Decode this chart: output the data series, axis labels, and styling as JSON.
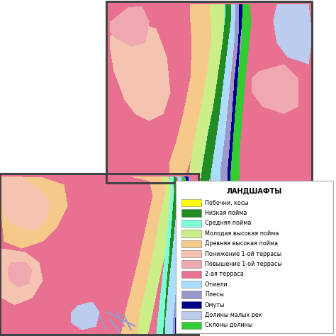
{
  "legend_title": "ЛАНДШАФТЫ",
  "legend_items": [
    {
      "label": "Побочни, косы",
      "color": "#FFFF00"
    },
    {
      "label": "Низкая пойма",
      "color": "#228B22"
    },
    {
      "label": "Средняя пойма",
      "color": "#7FFFD4"
    },
    {
      "label": "Молодая высокая пойма",
      "color": "#CCEE88"
    },
    {
      "label": "Древняя высокая пойма",
      "color": "#F5C98A"
    },
    {
      "label": "Понижение 1-ой террасы",
      "color": "#F4C4B0"
    },
    {
      "label": "Повышение 1-ой террасы",
      "color": "#F0A8B0"
    },
    {
      "label": "2-ая терраса",
      "color": "#E87090"
    },
    {
      "label": "Отмели",
      "color": "#AADDFF"
    },
    {
      "label": "Плесы",
      "color": "#9999CC"
    },
    {
      "label": "Омуты",
      "color": "#00008B"
    },
    {
      "label": "Долины малых рек",
      "color": "#BBCCEE"
    },
    {
      "label": "Склоны долины",
      "color": "#33CC33"
    }
  ],
  "colors": {
    "white": "#FFFFFF",
    "terrace2": "#E87090",
    "lower1": "#F4C4B0",
    "upper1": "#F0A8B0",
    "ancient_fp": "#F5C98A",
    "young_fp": "#CCEE88",
    "mid_fp": "#7FFFD4",
    "low_fp": "#228B22",
    "bars": "#FFFF00",
    "shoals": "#AADDFF",
    "pools": "#9999CC",
    "deeps": "#00008B",
    "valleys": "#BBCCEE",
    "slopes": "#33CC33",
    "outline": "#555555"
  }
}
